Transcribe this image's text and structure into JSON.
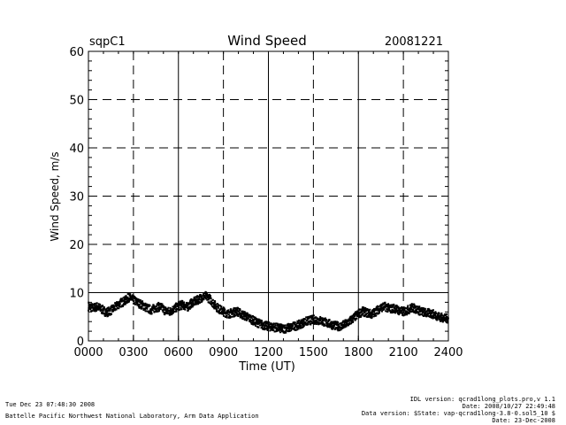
{
  "header": {
    "site": "sqpC1",
    "title": "Wind Speed",
    "date": "20081221"
  },
  "chart_data": {
    "type": "scatter",
    "title": "Wind Speed",
    "xlabel": "Time (UT)",
    "ylabel": "Wind Speed, m/s",
    "xlim": [
      0,
      2400
    ],
    "ylim": [
      0,
      60
    ],
    "x_ticks": [
      "0000",
      "0300",
      "0600",
      "0900",
      "1200",
      "1500",
      "1800",
      "2100",
      "2400"
    ],
    "y_ticks": [
      "0",
      "10",
      "20",
      "30",
      "40",
      "50",
      "60"
    ],
    "grid": "dashed",
    "solid_lines": {
      "x": [
        600,
        1200,
        1800
      ],
      "y": [
        10
      ]
    },
    "series": [
      {
        "x": [
          0,
          30,
          60,
          90,
          120,
          150,
          180,
          210,
          240,
          270,
          300,
          330,
          360,
          390,
          420,
          450,
          480,
          510,
          540,
          570,
          600,
          630,
          660,
          690,
          720,
          750,
          780,
          810,
          840,
          870,
          900,
          930,
          960,
          990,
          1020,
          1050,
          1080,
          1110,
          1140,
          1170,
          1200,
          1230,
          1260,
          1290,
          1320,
          1350,
          1380,
          1410,
          1440,
          1470,
          1500,
          1530,
          1560,
          1590,
          1620,
          1650,
          1680,
          1710,
          1740,
          1770,
          1800,
          1830,
          1860,
          1890,
          1920,
          1950,
          1980,
          2010,
          2040,
          2070,
          2100,
          2130,
          2160,
          2190,
          2220,
          2250,
          2280,
          2310,
          2340,
          2370,
          2400
        ],
        "values": [
          7.2,
          6.8,
          7.1,
          6.5,
          5.9,
          6.3,
          7.0,
          7.8,
          8.2,
          9.0,
          8.5,
          7.9,
          7.4,
          6.8,
          6.4,
          6.9,
          7.1,
          6.3,
          6.0,
          6.6,
          7.2,
          7.5,
          7.0,
          7.9,
          8.3,
          8.9,
          9.3,
          8.7,
          7.5,
          6.6,
          6.1,
          5.6,
          5.8,
          6.2,
          5.5,
          5.1,
          4.6,
          4.0,
          3.6,
          3.2,
          3.0,
          2.9,
          2.7,
          2.5,
          2.6,
          2.8,
          3.1,
          3.4,
          3.9,
          4.2,
          4.4,
          4.3,
          4.1,
          3.7,
          3.4,
          3.1,
          3.0,
          3.4,
          4.0,
          4.8,
          5.6,
          6.1,
          5.8,
          5.5,
          6.2,
          6.9,
          7.1,
          6.6,
          6.8,
          6.3,
          6.0,
          6.4,
          6.9,
          6.5,
          6.1,
          5.8,
          5.7,
          5.4,
          5.0,
          4.7,
          4.6
        ]
      }
    ]
  },
  "footer": {
    "left_line1": "Tue Dec 23 07:48:30 2008",
    "left_line2": "Battelle Pacific Northwest National Laboratory, Arm Data Application",
    "right_line1": "IDL version: qcrad1long_plots.pro,v 1.1",
    "right_line2": "Date: 2008/10/27 22:49:48",
    "right_line3": "Data version: $State: vap-qcrad1long-3.8-0.sol5_10 $",
    "right_line4": "Date: 23-Dec-2008"
  }
}
